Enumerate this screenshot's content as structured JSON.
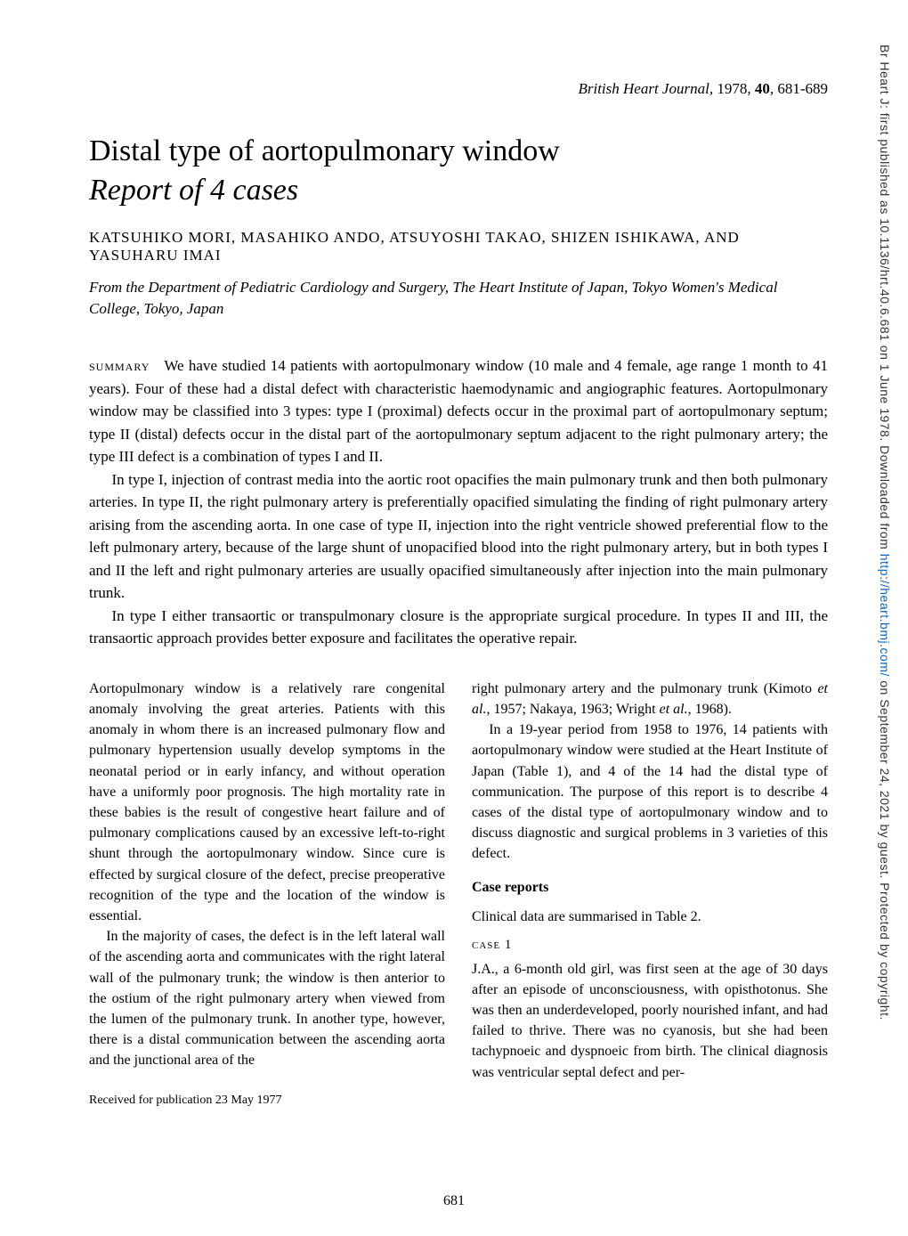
{
  "sidebar": {
    "text_before_link": "Br Heart J: first published as 10.1136/hrt.40.6.681 on 1 June 1978. Downloaded from ",
    "link_text": "http://heart.bmj.com/",
    "link_url": "http://heart.bmj.com/",
    "text_after_link": " on September 24, 2021 by guest. Protected by copyright."
  },
  "journal_ref": {
    "journal": "British Heart Journal",
    "year": "1978",
    "volume": "40",
    "pages": "681-689"
  },
  "title": "Distal type of aortopulmonary window",
  "subtitle": "Report of 4 cases",
  "authors": "KATSUHIKO MORI, MASAHIKO ANDO, ATSUYOSHI TAKAO, SHIZEN ISHIKAWA, AND YASUHARU IMAI",
  "affiliation": "From the Department of Pediatric Cardiology and Surgery, The Heart Institute of Japan, Tokyo Women's Medical College, Tokyo, Japan",
  "summary": {
    "label": "summary",
    "p1": "We have studied 14 patients with aortopulmonary window (10 male and 4 female, age range 1 month to 41 years). Four of these had a distal defect with characteristic haemodynamic and angiographic features. Aortopulmonary window may be classified into 3 types: type I (proximal) defects occur in the proximal part of aortopulmonary septum; type II (distal) defects occur in the distal part of the aortopulmonary septum adjacent to the right pulmonary artery; the type III defect is a combination of types I and II.",
    "p2": "In type I, injection of contrast media into the aortic root opacifies the main pulmonary trunk and then both pulmonary arteries. In type II, the right pulmonary artery is preferentially opacified simulating the finding of right pulmonary artery arising from the ascending aorta. In one case of type II, injection into the right ventricle showed preferential flow to the left pulmonary artery, because of the large shunt of unopacified blood into the right pulmonary artery, but in both types I and II the left and right pulmonary arteries are usually opacified simultaneously after injection into the main pulmonary trunk.",
    "p3": "In type I either transaortic or transpulmonary closure is the appropriate surgical procedure. In types II and III, the transaortic approach provides better exposure and facilitates the operative repair."
  },
  "body": {
    "left": {
      "p1": "Aortopulmonary window is a relatively rare congenital anomaly involving the great arteries. Patients with this anomaly in whom there is an increased pulmonary flow and pulmonary hypertension usually develop symptoms in the neonatal period or in early infancy, and without operation have a uniformly poor prognosis. The high mortality rate in these babies is the result of congestive heart failure and of pulmonary complications caused by an excessive left-to-right shunt through the aortopulmonary window. Since cure is effected by surgical closure of the defect, precise preoperative recognition of the type and the location of the window is essential.",
      "p2": "In the majority of cases, the defect is in the left lateral wall of the ascending aorta and communicates with the right lateral wall of the pulmonary trunk; the window is then anterior to the ostium of the right pulmonary artery when viewed from the lumen of the pulmonary trunk. In another type, however, there is a distal communication between the ascending aorta and the junctional area of the",
      "received": "Received for publication 23 May 1977"
    },
    "right": {
      "p1_start": "right pulmonary artery and the pulmonary trunk (Kimoto ",
      "p1_etal1": "et al.",
      "p1_mid": ", 1957; Nakaya, 1963; Wright ",
      "p1_etal2": "et al.",
      "p1_end": ", 1968).",
      "p2": "In a 19-year period from 1958 to 1976, 14 patients with aortopulmonary window were studied at the Heart Institute of Japan (Table 1), and 4 of the 14 had the distal type of communication. The purpose of this report is to describe 4 cases of the distal type of aortopulmonary window and to discuss diagnostic and surgical problems in 3 varieties of this defect.",
      "section_title": "Case reports",
      "p3": "Clinical data are summarised in Table 2.",
      "case_label": "case 1",
      "p4": "J.A., a 6-month old girl, was first seen at the age of 30 days after an episode of unconsciousness, with opisthotonus. She was then an underdeveloped, poorly nourished infant, and had failed to thrive. There was no cyanosis, but she had been tachypnoeic and dyspnoeic from birth. The clinical diagnosis was ventricular septal defect and per-"
    }
  },
  "page_number": "681"
}
